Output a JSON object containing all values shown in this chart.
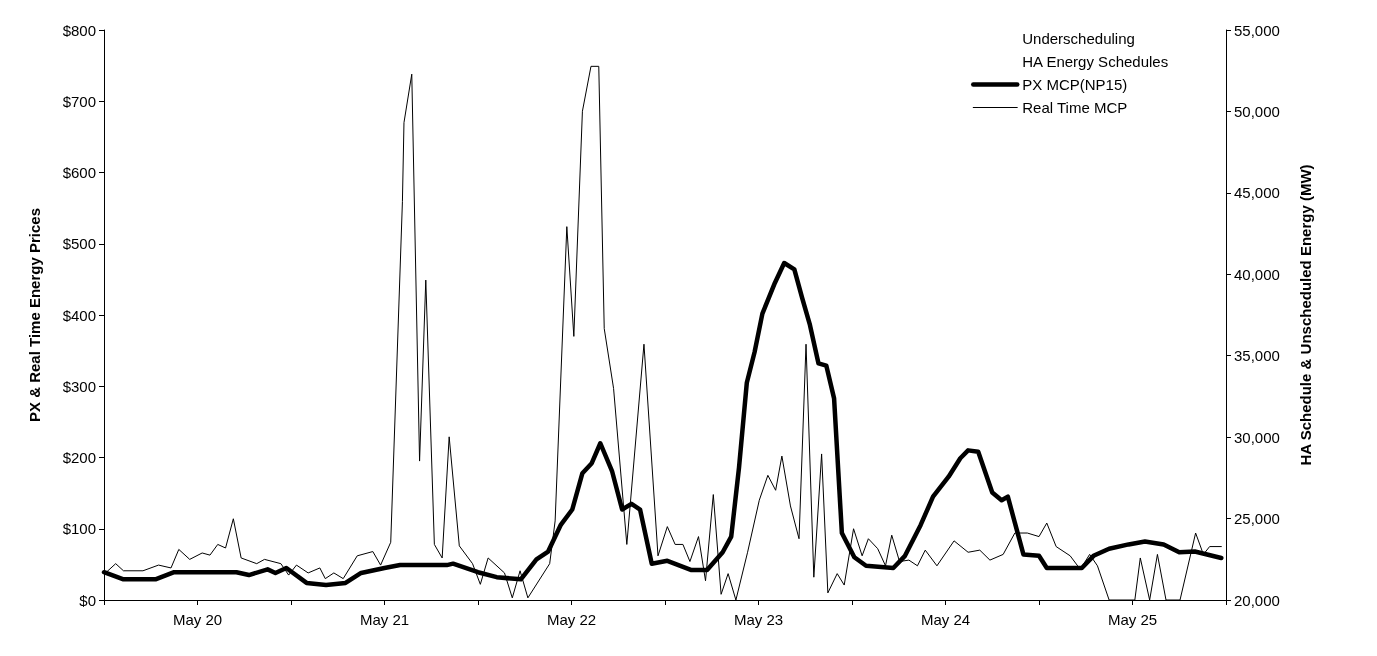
{
  "chart_data": {
    "type": "line",
    "ylabel": "PX & Real Time Energy Prices",
    "y2label": "HA Schedule & Unscheduled Energy (MW)",
    "xlim": [
      "--05-20T00:00",
      "--05-26T00:00"
    ],
    "xticks": [
      {
        "value": "--05-20T00:00",
        "label": null
      },
      {
        "value": "--05-20T12:00",
        "label": "May 20"
      },
      {
        "value": "--05-21T00:00",
        "label": null
      },
      {
        "value": "--05-21T12:00",
        "label": "May 21"
      },
      {
        "value": "--05-22T00:00",
        "label": null
      },
      {
        "value": "--05-22T12:00",
        "label": "May 22"
      },
      {
        "value": "--05-23T00:00",
        "label": null
      },
      {
        "value": "--05-23T12:00",
        "label": "May 23"
      },
      {
        "value": "--05-24T00:00",
        "label": null
      },
      {
        "value": "--05-24T12:00",
        "label": "May 24"
      },
      {
        "value": "--05-25T00:00",
        "label": null
      },
      {
        "value": "--05-25T12:00",
        "label": "May 25"
      },
      {
        "value": "--05-26T00:00",
        "label": null
      }
    ],
    "ylim": [
      0,
      800
    ],
    "yticks": [
      {
        "value": 0,
        "label": "$0"
      },
      {
        "value": 100,
        "label": "$100"
      },
      {
        "value": 200,
        "label": "$200"
      },
      {
        "value": 300,
        "label": "$300"
      },
      {
        "value": 400,
        "label": "$400"
      },
      {
        "value": 500,
        "label": "$500"
      },
      {
        "value": 600,
        "label": "$600"
      },
      {
        "value": 700,
        "label": "$700"
      },
      {
        "value": 800,
        "label": "$800"
      }
    ],
    "y2lim": [
      20000,
      55000
    ],
    "y2ticks": [
      {
        "value": 20000,
        "label": "20,000"
      },
      {
        "value": 25000,
        "label": "25,000"
      },
      {
        "value": 30000,
        "label": "30,000"
      },
      {
        "value": 35000,
        "label": "35,000"
      },
      {
        "value": 40000,
        "label": "40,000"
      },
      {
        "value": 45000,
        "label": "45,000"
      },
      {
        "value": 50000,
        "label": "50,000"
      },
      {
        "value": 55000,
        "label": "55,000"
      }
    ],
    "legend": "top right",
    "grid": false,
    "marker": "none",
    "line_style": "solid",
    "series": [
      {
        "name": "Underscheduling"
      },
      {
        "name": "HA Energy Schedules"
      },
      {
        "name": "PX MCP(NP15)",
        "color": "#000000",
        "x": [
          "--05-20T00:00",
          "--05-20T02:30",
          "--05-20T06:36",
          "--05-20T09:00",
          "--05-20T17:00",
          "--05-20T18:36",
          "--05-20T21:00",
          "--05-20T22:00",
          "--05-20T23:24",
          "--05-21T02:00",
          "--05-21T04:30",
          "--05-21T07:00",
          "--05-21T09:00",
          "--05-21T12:00",
          "--05-21T14:00",
          "--05-21T20:00",
          "--05-21T20:48",
          "--05-22T00:00",
          "--05-22T02:24",
          "--05-22T05:30",
          "--05-22T07:30",
          "--05-22T09:00",
          "--05-22T10:36",
          "--05-22T12:06",
          "--05-22T13:24",
          "--05-22T14:36",
          "--05-22T15:42",
          "--05-22T17:12",
          "--05-22T18:30",
          "--05-22T19:42",
          "--05-22T20:48",
          "--05-22T22:18",
          "--05-23T00:18",
          "--05-23T03:24",
          "--05-23T05:24",
          "--05-23T07:24",
          "--05-23T08:30",
          "--05-23T09:30",
          "--05-23T10:30",
          "--05-23T11:30",
          "--05-23T12:30",
          "--05-23T14:06",
          "--05-23T15:18",
          "--05-23T16:36",
          "--05-23T17:36",
          "--05-23T18:36",
          "--05-23T19:42",
          "--05-23T20:42",
          "--05-23T21:42",
          "--05-23T22:42",
          "--05-24T00:18",
          "--05-24T01:48",
          "--05-24T05:18",
          "--05-24T06:48",
          "--05-24T08:48",
          "--05-24T10:24",
          "--05-24T12:24",
          "--05-24T13:54",
          "--05-24T14:54",
          "--05-24T16:12",
          "--05-24T18:00",
          "--05-24T19:12",
          "--05-24T20:00",
          "--05-24T22:00",
          "--05-25T00:00",
          "--05-25T01:00",
          "--05-25T05:30",
          "--05-25T07:00",
          "--05-25T09:00",
          "--05-25T11:30",
          "--05-25T13:36",
          "--05-25T16:00",
          "--05-25T18:00",
          "--05-25T20:00",
          "--05-25T23:24"
        ],
        "values": [
          39,
          29,
          29,
          39,
          39,
          35,
          43,
          38,
          45,
          24,
          21,
          24,
          38,
          45,
          49,
          49,
          51,
          39,
          32,
          29,
          57,
          68,
          105,
          127,
          178,
          192,
          220,
          181,
          127,
          135,
          127,
          51,
          55,
          42,
          42,
          67,
          89,
          186,
          305,
          348,
          402,
          445,
          473,
          464,
          424,
          386,
          332,
          329,
          283,
          94,
          60,
          48,
          45,
          62,
          105,
          145,
          173,
          199,
          210,
          208,
          151,
          140,
          145,
          64,
          62,
          45,
          45,
          62,
          72,
          78,
          82,
          78,
          67,
          68,
          59
        ]
      },
      {
        "name": "Real Time MCP",
        "color": "#000000",
        "x": [
          "--05-20T00:18",
          "--05-20T01:30",
          "--05-20T02:30",
          "--05-20T05:00",
          "--05-20T07:00",
          "--05-20T08:36",
          "--05-20T09:36",
          "--05-20T11:00",
          "--05-20T12:36",
          "--05-20T13:36",
          "--05-20T14:36",
          "--05-20T15:36",
          "--05-20T16:36",
          "--05-20T17:36",
          "--05-20T19:36",
          "--05-20T20:36",
          "--05-20T22:42",
          "--05-20T23:42",
          "--05-21T00:42",
          "--05-21T02:12",
          "--05-21T03:42",
          "--05-21T04:24",
          "--05-21T05:30",
          "--05-21T06:42",
          "--05-21T08:30",
          "--05-21T10:30",
          "--05-21T11:30",
          "--05-21T12:48",
          "--05-21T14:18",
          "--05-21T14:30",
          "--05-21T15:30",
          "--05-21T16:30",
          "--05-21T17:18",
          "--05-21T18:24",
          "--05-21T19:24",
          "--05-21T20:18",
          "--05-21T21:36",
          "--05-21T23:18",
          "--05-22T00:18",
          "--05-22T01:18",
          "--05-22T03:24",
          "--05-22T04:24",
          "--05-22T05:24",
          "--05-22T06:24",
          "--05-22T09:12",
          "--05-22T09:54",
          "--05-22T11:24",
          "--05-22T12:18",
          "--05-22T13:24",
          "--05-22T14:30",
          "--05-22T15:30",
          "--05-22T16:12",
          "--05-22T17:24",
          "--05-22T19:06",
          "--05-22T21:18",
          "--05-22T23:06",
          "--05-23T00:18",
          "--05-23T01:18",
          "--05-23T02:18",
          "--05-23T03:12",
          "--05-23T04:18",
          "--05-23T05:12",
          "--05-23T06:12",
          "--05-23T07:12",
          "--05-23T08:06",
          "--05-23T09:06",
          "--05-23T10:36",
          "--05-23T12:06",
          "--05-23T13:12",
          "--05-23T14:12",
          "--05-23T15:00",
          "--05-23T16:06",
          "--05-23T17:12",
          "--05-23T18:06",
          "--05-23T19:06",
          "--05-23T20:06",
          "--05-23T20:54",
          "--05-23T22:06",
          "--05-23T23:00",
          "--05-24T00:12",
          "--05-24T01:18",
          "--05-24T02:06",
          "--05-24T03:18",
          "--05-24T04:18",
          "--05-24T05:06",
          "--05-24T06:06",
          "--05-24T07:18",
          "--05-24T08:24",
          "--05-24T09:24",
          "--05-24T10:54",
          "--05-24T13:06",
          "--05-24T14:54",
          "--05-24T16:24",
          "--05-24T17:42",
          "--05-24T19:24",
          "--05-24T20:54",
          "--05-24T22:30",
          "--05-25T00:00",
          "--05-25T01:00",
          "--05-25T02:12",
          "--05-25T04:00",
          "--05-25T05:18",
          "--05-25T06:30",
          "--05-25T07:30",
          "--05-25T09:00",
          "--05-25T12:18",
          "--05-25T13:00",
          "--05-25T14:12",
          "--05-25T15:12",
          "--05-25T16:18",
          "--05-25T18:06",
          "--05-25T20:06",
          "--05-25T21:06",
          "--05-25T21:54",
          "--05-25T23:24"
        ],
        "values": [
          39,
          51,
          41,
          41,
          49,
          45,
          71,
          57,
          66,
          63,
          78,
          73,
          114,
          59,
          51,
          57,
          51,
          35,
          49,
          38,
          45,
          30,
          38,
          30,
          62,
          68,
          49,
          81,
          559,
          670,
          738,
          195,
          449,
          78,
          59,
          229,
          76,
          51,
          22,
          59,
          38,
          3,
          41,
          3,
          51,
          111,
          524,
          370,
          686,
          749,
          749,
          381,
          297,
          78,
          359,
          62,
          103,
          78,
          78,
          54,
          89,
          27,
          148,
          8,
          37,
          0,
          67,
          140,
          175,
          154,
          202,
          132,
          86,
          359,
          32,
          205,
          10,
          37,
          21,
          100,
          62,
          86,
          72,
          48,
          91,
          54,
          56,
          48,
          70,
          48,
          83,
          67,
          70,
          56,
          64,
          94,
          94,
          89,
          108,
          75,
          62,
          43,
          64,
          48,
          0,
          0,
          59,
          0,
          64,
          0,
          0,
          94,
          64,
          75,
          75
        ]
      }
    ]
  }
}
